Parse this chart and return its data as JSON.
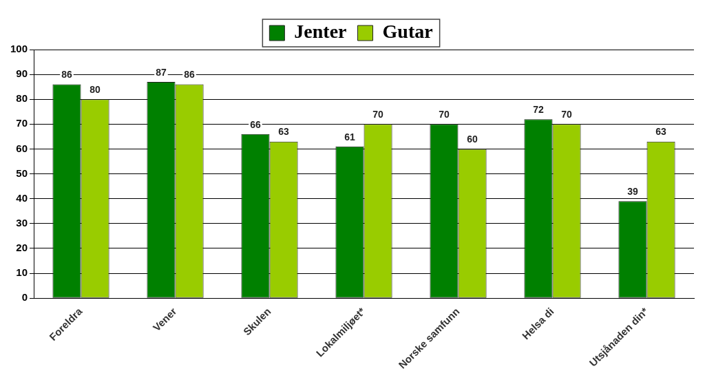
{
  "chart_data": {
    "type": "bar",
    "categories": [
      "Foreldra",
      "Vener",
      "Skulen",
      "Lokalmiljøet*",
      "Norske samfunn",
      "Helsa di",
      "Utsjånaden din*"
    ],
    "series": [
      {
        "name": "Jenter",
        "color": "#008000",
        "values": [
          86,
          87,
          66,
          61,
          70,
          72,
          39
        ]
      },
      {
        "name": "Gutar",
        "color": "#99cc00",
        "values": [
          80,
          86,
          63,
          70,
          60,
          70,
          63
        ]
      }
    ],
    "ylim": [
      0,
      100
    ],
    "yticks": [
      0,
      10,
      20,
      30,
      40,
      50,
      60,
      70,
      80,
      90,
      100
    ],
    "grid": "y",
    "legend": "top",
    "data_labels": true
  }
}
